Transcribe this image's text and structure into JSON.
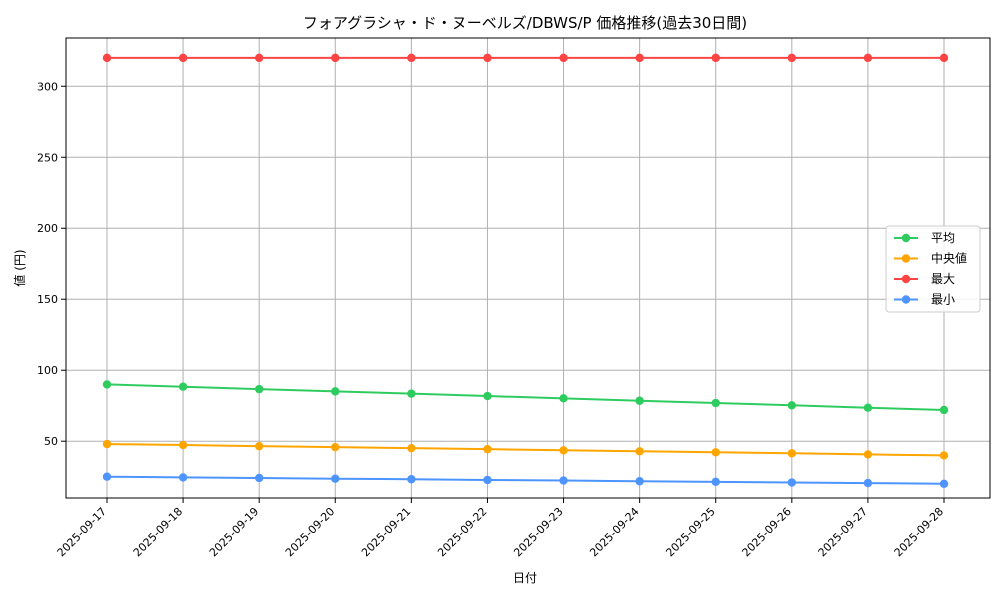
{
  "chart_data": {
    "type": "line",
    "title": "フォアグラシャ・ド・ヌーベルズ/DBWS/P 価格推移(過去30日間)",
    "xlabel": "日付",
    "ylabel": "値 (円)",
    "categories": [
      "2025-09-17",
      "2025-09-18",
      "2025-09-19",
      "2025-09-20",
      "2025-09-21",
      "2025-09-22",
      "2025-09-23",
      "2025-09-24",
      "2025-09-25",
      "2025-09-26",
      "2025-09-27",
      "2025-09-28"
    ],
    "ylim": [
      10,
      334
    ],
    "yticks": [
      50,
      100,
      150,
      200,
      250,
      300
    ],
    "grid": true,
    "legend_position": "center-right",
    "series": [
      {
        "name": "平均",
        "color": "#2ecc5f",
        "values": [
          90,
          88.4,
          86.7,
          85.1,
          83.5,
          81.8,
          80.2,
          78.5,
          76.9,
          75.3,
          73.6,
          72
        ]
      },
      {
        "name": "中央値",
        "color": "#ffa500",
        "values": [
          48,
          47.3,
          46.5,
          45.8,
          45.1,
          44.4,
          43.6,
          42.9,
          42.2,
          41.5,
          40.7,
          40
        ]
      },
      {
        "name": "最大",
        "color": "#ff4444",
        "values": [
          320,
          320,
          320,
          320,
          320,
          320,
          320,
          320,
          320,
          320,
          320,
          320
        ]
      },
      {
        "name": "最小",
        "color": "#4d94ff",
        "values": [
          25,
          24.5,
          24.1,
          23.6,
          23.2,
          22.7,
          22.3,
          21.8,
          21.4,
          20.9,
          20.5,
          20
        ]
      }
    ]
  }
}
